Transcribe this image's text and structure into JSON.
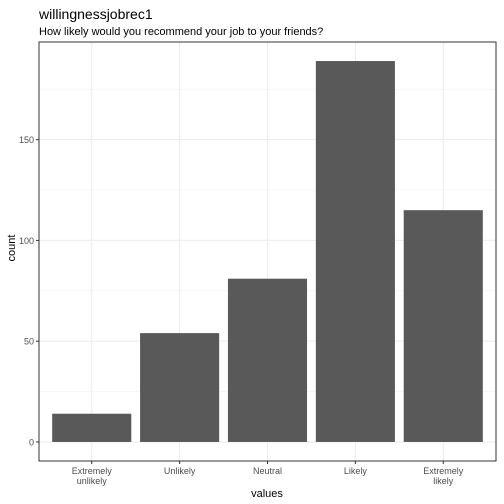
{
  "chart_data": {
    "type": "bar",
    "title": "willingnessjobrec1",
    "subtitle": "How likely would you recommend your job to your friends?",
    "xlabel": "values",
    "ylabel": "count",
    "categories": [
      [
        "Extremely",
        "unlikely"
      ],
      [
        "Unlikely"
      ],
      [
        "Neutral"
      ],
      [
        "Likely"
      ],
      [
        "Extremely",
        "likely"
      ]
    ],
    "values": [
      14,
      54,
      81,
      189,
      115
    ],
    "ylim": [
      -9.45,
      198.45
    ],
    "yticks": [
      0,
      50,
      100,
      150
    ],
    "grid": true,
    "legend": "none",
    "colors": {
      "bar": "#595959",
      "panel_border": "#333333",
      "grid_major": "#ebebeb",
      "grid_minor": "#f2f2f2",
      "tick_text": "#4d4d4d",
      "title_text": "#000000"
    }
  }
}
